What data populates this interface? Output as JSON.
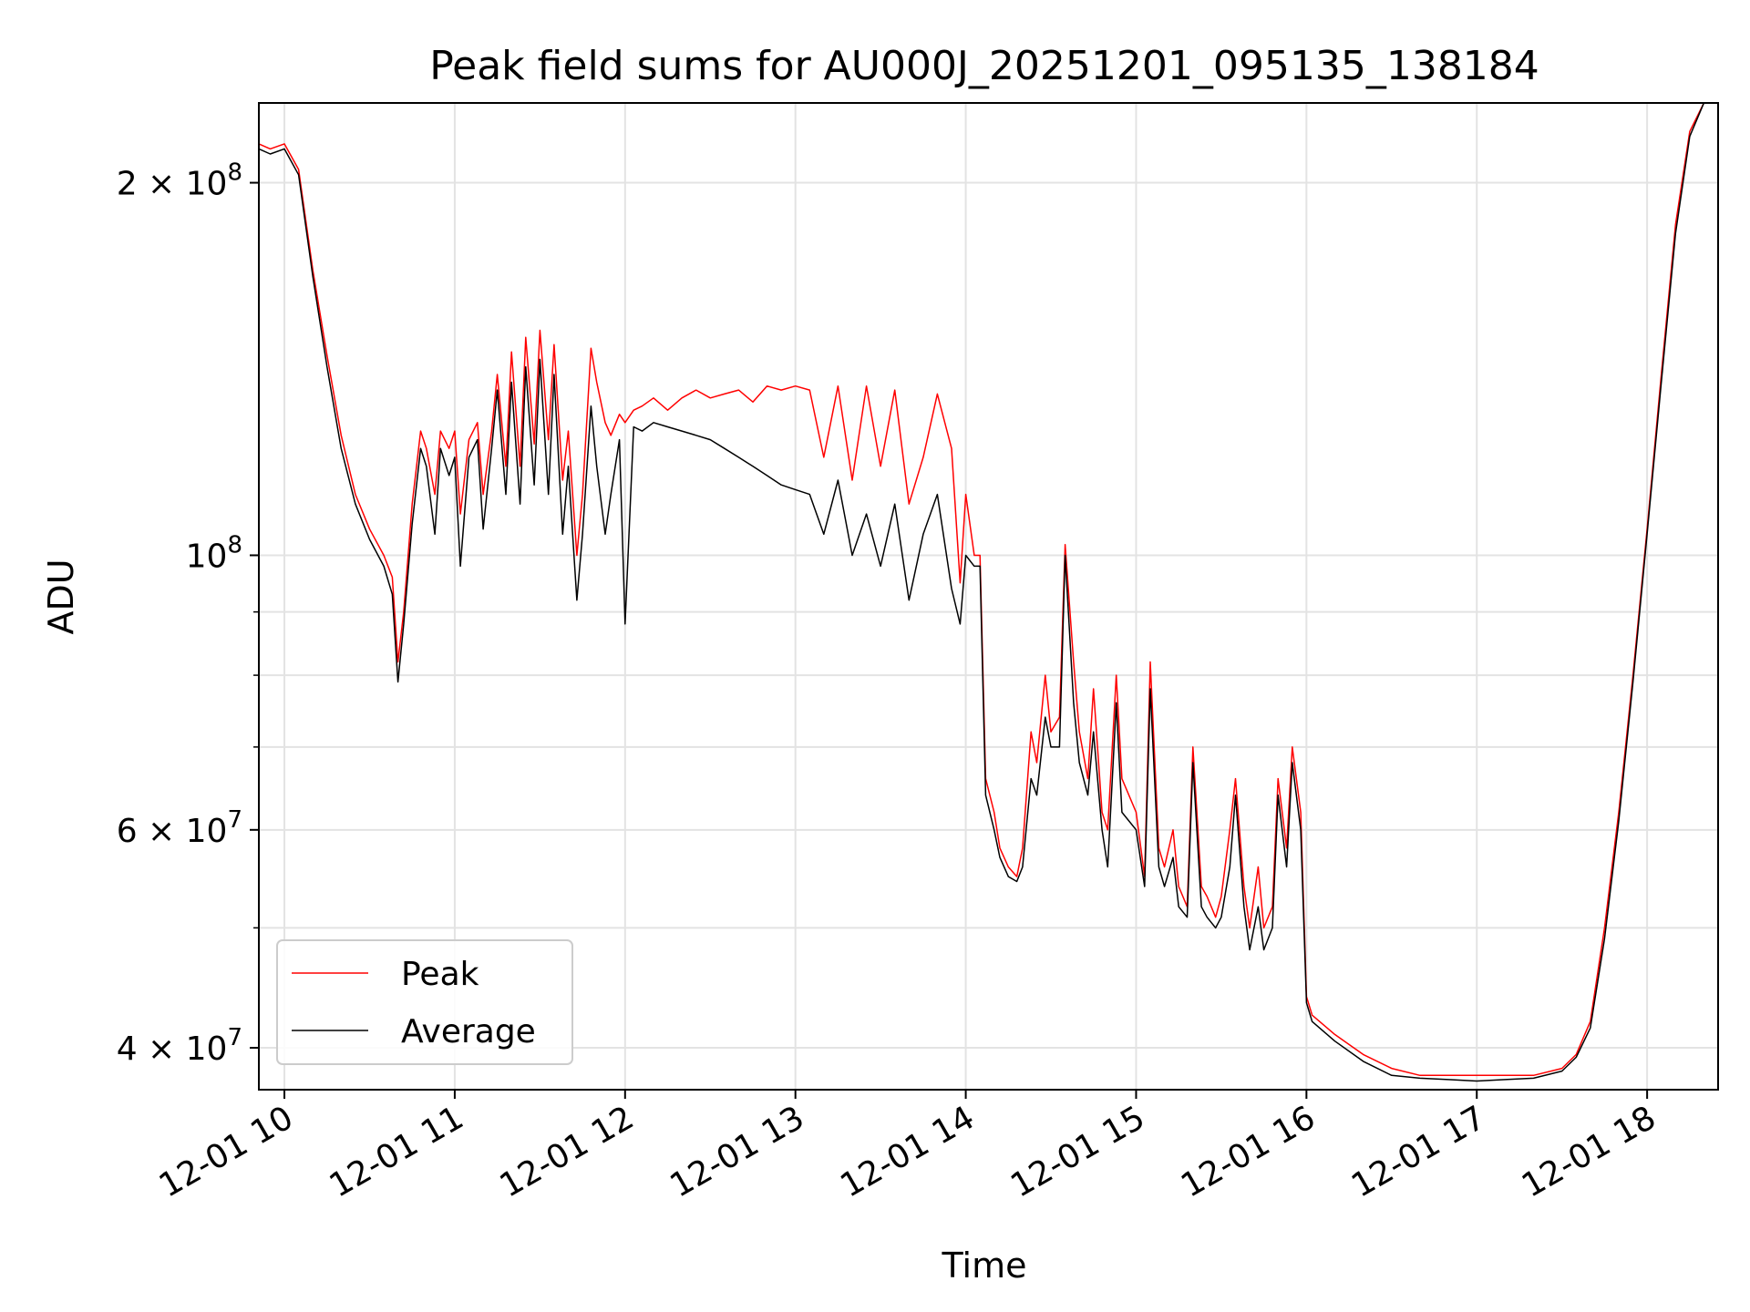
{
  "chart_data": {
    "type": "line",
    "title": "Peak field sums for AU000J_20251201_095135_138184",
    "xlabel": "Time",
    "ylabel": "ADU",
    "yscale": "log",
    "ylim": [
      37000000,
      232000000
    ],
    "xlim": [
      "2025-12-01 09:51",
      "2025-12-01 18:25"
    ],
    "grid": true,
    "legend_position": "lower left",
    "x_ticks": [
      {
        "label": "12-01 10",
        "time": "2025-12-01 10:00"
      },
      {
        "label": "12-01 11",
        "time": "2025-12-01 11:00"
      },
      {
        "label": "12-01 12",
        "time": "2025-12-01 12:00"
      },
      {
        "label": "12-01 13",
        "time": "2025-12-01 13:00"
      },
      {
        "label": "12-01 14",
        "time": "2025-12-01 14:00"
      },
      {
        "label": "12-01 15",
        "time": "2025-12-01 15:00"
      },
      {
        "label": "12-01 16",
        "time": "2025-12-01 16:00"
      },
      {
        "label": "12-01 17",
        "time": "2025-12-01 17:00"
      },
      {
        "label": "12-01 18",
        "time": "2025-12-01 18:00"
      }
    ],
    "y_ticks_major": [
      {
        "label": "4 × 10^7",
        "mant": "4 × 10",
        "exp": "7",
        "value": 40000000
      },
      {
        "label": "6 × 10^7",
        "mant": "6 × 10",
        "exp": "7",
        "value": 60000000
      },
      {
        "label": "10^8",
        "mant": "10",
        "exp": "8",
        "value": 100000000
      },
      {
        "label": "2 × 10^8",
        "mant": "2 × 10",
        "exp": "8",
        "value": 200000000
      }
    ],
    "y_ticks_minor": [
      50000000,
      70000000,
      80000000,
      90000000
    ],
    "series": [
      {
        "name": "Peak",
        "color": "#ff0000",
        "x": [
          "09:51",
          "09:55",
          "10:00",
          "10:05",
          "10:10",
          "10:15",
          "10:20",
          "10:25",
          "10:30",
          "10:35",
          "10:38",
          "10:40",
          "10:42",
          "10:45",
          "10:48",
          "10:50",
          "10:53",
          "10:55",
          "10:58",
          "11:00",
          "11:02",
          "11:05",
          "11:08",
          "11:10",
          "11:13",
          "11:15",
          "11:18",
          "11:20",
          "11:23",
          "11:25",
          "11:28",
          "11:30",
          "11:33",
          "11:35",
          "11:38",
          "11:40",
          "11:43",
          "11:45",
          "11:48",
          "11:50",
          "11:53",
          "11:55",
          "11:58",
          "12:00",
          "12:03",
          "12:06",
          "12:10",
          "12:15",
          "12:20",
          "12:25",
          "12:30",
          "12:35",
          "12:40",
          "12:45",
          "12:50",
          "12:55",
          "13:00",
          "13:05",
          "13:10",
          "13:15",
          "13:20",
          "13:25",
          "13:30",
          "13:35",
          "13:40",
          "13:45",
          "13:50",
          "13:55",
          "13:58",
          "14:00",
          "14:03",
          "14:05",
          "14:07",
          "14:10",
          "14:12",
          "14:15",
          "14:18",
          "14:20",
          "14:23",
          "14:25",
          "14:28",
          "14:30",
          "14:33",
          "14:35",
          "14:38",
          "14:40",
          "14:43",
          "14:45",
          "14:48",
          "14:50",
          "14:53",
          "14:55",
          "15:00",
          "15:03",
          "15:05",
          "15:08",
          "15:10",
          "15:13",
          "15:15",
          "15:18",
          "15:20",
          "15:23",
          "15:25",
          "15:28",
          "15:30",
          "15:33",
          "15:35",
          "15:38",
          "15:40",
          "15:43",
          "15:45",
          "15:48",
          "15:50",
          "15:53",
          "15:55",
          "15:58",
          "16:00",
          "16:02",
          "16:10",
          "16:20",
          "16:30",
          "16:40",
          "16:50",
          "17:00",
          "17:10",
          "17:20",
          "17:30",
          "17:35",
          "17:40",
          "17:45",
          "17:50",
          "17:55",
          "18:00",
          "18:05",
          "18:10",
          "18:15",
          "18:20",
          "18:25"
        ],
        "values": [
          215000000,
          213000000,
          215000000,
          205000000,
          170000000,
          145000000,
          125000000,
          112000000,
          105000000,
          100000000,
          96000000,
          82000000,
          90000000,
          110000000,
          126000000,
          122000000,
          112000000,
          126000000,
          122000000,
          126000000,
          108000000,
          124000000,
          128000000,
          112000000,
          126000000,
          140000000,
          118000000,
          146000000,
          118000000,
          150000000,
          123000000,
          152000000,
          124000000,
          148000000,
          115000000,
          126000000,
          100000000,
          112000000,
          147000000,
          138000000,
          128000000,
          125000000,
          130000000,
          128000000,
          131000000,
          132000000,
          134000000,
          131000000,
          134000000,
          136000000,
          134000000,
          135000000,
          136000000,
          133000000,
          137000000,
          136000000,
          137000000,
          136000000,
          120000000,
          137000000,
          115000000,
          137000000,
          118000000,
          136000000,
          110000000,
          120000000,
          135000000,
          122000000,
          95000000,
          112000000,
          100000000,
          100000000,
          66000000,
          62000000,
          58000000,
          56000000,
          55000000,
          58000000,
          72000000,
          68000000,
          80000000,
          72000000,
          74000000,
          102000000,
          82000000,
          72000000,
          66000000,
          78000000,
          62000000,
          60000000,
          80000000,
          66000000,
          62000000,
          55000000,
          82000000,
          58000000,
          56000000,
          60000000,
          54000000,
          52000000,
          70000000,
          54000000,
          53000000,
          51000000,
          53000000,
          60000000,
          66000000,
          54000000,
          50000000,
          56000000,
          50000000,
          52000000,
          66000000,
          58000000,
          70000000,
          62000000,
          44000000,
          42500000,
          41000000,
          39500000,
          38500000,
          38000000,
          38000000,
          38000000,
          38000000,
          38000000,
          38500000,
          39500000,
          42000000,
          50000000,
          62000000,
          80000000,
          105000000,
          140000000,
          185000000,
          220000000,
          232000000,
          232000000
        ]
      },
      {
        "name": "Average",
        "color": "#000000",
        "x": [
          "09:51",
          "09:55",
          "10:00",
          "10:05",
          "10:10",
          "10:15",
          "10:20",
          "10:25",
          "10:30",
          "10:35",
          "10:38",
          "10:40",
          "10:42",
          "10:45",
          "10:48",
          "10:50",
          "10:53",
          "10:55",
          "10:58",
          "11:00",
          "11:02",
          "11:05",
          "11:08",
          "11:10",
          "11:13",
          "11:15",
          "11:18",
          "11:20",
          "11:23",
          "11:25",
          "11:28",
          "11:30",
          "11:33",
          "11:35",
          "11:38",
          "11:40",
          "11:43",
          "11:45",
          "11:48",
          "11:50",
          "11:53",
          "11:55",
          "11:58",
          "12:00",
          "12:03",
          "12:06",
          "12:10",
          "12:15",
          "12:20",
          "12:25",
          "12:30",
          "12:35",
          "12:40",
          "12:45",
          "12:50",
          "12:55",
          "13:00",
          "13:05",
          "13:10",
          "13:15",
          "13:20",
          "13:25",
          "13:30",
          "13:35",
          "13:40",
          "13:45",
          "13:50",
          "13:55",
          "13:58",
          "14:00",
          "14:03",
          "14:05",
          "14:07",
          "14:10",
          "14:12",
          "14:15",
          "14:18",
          "14:20",
          "14:23",
          "14:25",
          "14:28",
          "14:30",
          "14:33",
          "14:35",
          "14:38",
          "14:40",
          "14:43",
          "14:45",
          "14:48",
          "14:50",
          "14:53",
          "14:55",
          "15:00",
          "15:03",
          "15:05",
          "15:08",
          "15:10",
          "15:13",
          "15:15",
          "15:18",
          "15:20",
          "15:23",
          "15:25",
          "15:28",
          "15:30",
          "15:33",
          "15:35",
          "15:38",
          "15:40",
          "15:43",
          "15:45",
          "15:48",
          "15:50",
          "15:53",
          "15:55",
          "15:58",
          "16:00",
          "16:02",
          "16:10",
          "16:20",
          "16:30",
          "16:40",
          "16:50",
          "17:00",
          "17:10",
          "17:20",
          "17:30",
          "17:35",
          "17:40",
          "17:45",
          "17:50",
          "17:55",
          "18:00",
          "18:05",
          "18:10",
          "18:15",
          "18:20",
          "18:25"
        ],
        "values": [
          213000000,
          211000000,
          213000000,
          203000000,
          168000000,
          142000000,
          122000000,
          110000000,
          103000000,
          98000000,
          93000000,
          79000000,
          88000000,
          106000000,
          122000000,
          118000000,
          104000000,
          122000000,
          116000000,
          120000000,
          98000000,
          120000000,
          124000000,
          105000000,
          122000000,
          136000000,
          112000000,
          138000000,
          110000000,
          142000000,
          114000000,
          144000000,
          112000000,
          140000000,
          104000000,
          118000000,
          92000000,
          104000000,
          132000000,
          118000000,
          104000000,
          112000000,
          124000000,
          88000000,
          127000000,
          126000000,
          128000000,
          127000000,
          126000000,
          125000000,
          124000000,
          122000000,
          120000000,
          118000000,
          116000000,
          114000000,
          113000000,
          112000000,
          104000000,
          115000000,
          100000000,
          108000000,
          98000000,
          110000000,
          92000000,
          104000000,
          112000000,
          94000000,
          88000000,
          100000000,
          98000000,
          98000000,
          64000000,
          60000000,
          57000000,
          55000000,
          54500000,
          56000000,
          66000000,
          64000000,
          74000000,
          70000000,
          70000000,
          100000000,
          76000000,
          68000000,
          64000000,
          72000000,
          60000000,
          56000000,
          76000000,
          62000000,
          60000000,
          54000000,
          78000000,
          56000000,
          54000000,
          57000000,
          52000000,
          51000000,
          68000000,
          52000000,
          51000000,
          50000000,
          51000000,
          56000000,
          64000000,
          52000000,
          48000000,
          52000000,
          48000000,
          50000000,
          64000000,
          56000000,
          68000000,
          60000000,
          43500000,
          42000000,
          40500000,
          39000000,
          38000000,
          37800000,
          37700000,
          37600000,
          37700000,
          37800000,
          38300000,
          39300000,
          41500000,
          49000000,
          61000000,
          79000000,
          104000000,
          138000000,
          182000000,
          218000000,
          232000000,
          232000000
        ]
      }
    ]
  }
}
